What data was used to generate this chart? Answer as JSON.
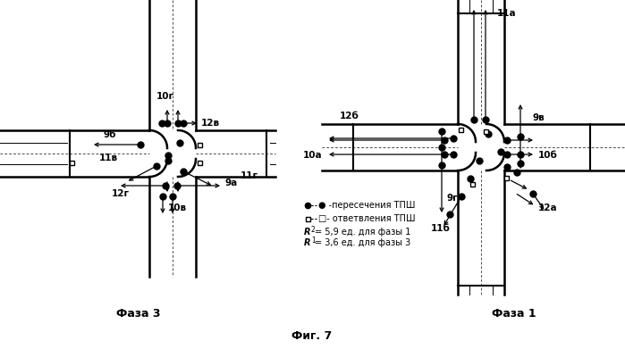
{
  "fig_width": 6.99,
  "fig_height": 3.91,
  "bg_color": "#ffffff",
  "title": "Фиг. 7",
  "label_faza3": "Фаза 3",
  "label_faza1": "Фаза 1"
}
